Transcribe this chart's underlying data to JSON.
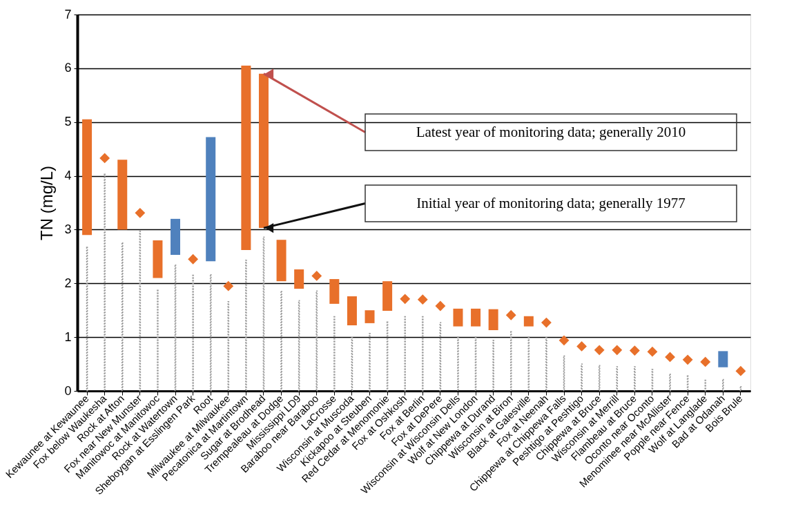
{
  "chart_data": {
    "type": "bar",
    "ylabel": "TN (mg/L)",
    "ylim": [
      0,
      7
    ],
    "yticks": [
      0,
      1,
      2,
      3,
      4,
      5,
      6,
      7
    ],
    "grid": "y",
    "categories": [
      "Kewaunee at Kewaunee",
      "Fox below Waukesha",
      "Rock at Afton",
      "Fox near New Munster",
      "Manitowoc at Manitowoc",
      "Rock at Watertown",
      "Sheboygan at Esslingen Park",
      "Root",
      "Milwaukee at Milwaukee",
      "Pecatonica at Martintown",
      "Sugar at Brodhead",
      "Trempealeau at Dodge",
      "Mississippi LD9",
      "Baraboo near Baraboo",
      "LaCrosse",
      "Wisconsin at Muscoda",
      "Kickapoo at Steuben",
      "Red Cedar at Menomonie",
      "Fox at Oshkosh",
      "Fox at Berlin",
      "Fox at DePere",
      "Wisconsin at Wisconsin Dells",
      "Wolf at New London",
      "Chippewa at Durand",
      "Wisconsin at Biron",
      "Black at Galesville",
      "Fox at Neenah",
      "Chippewa at Chippewa Falls",
      "Peshtigo at Peshtigo",
      "Chippewa at Bruce",
      "Wisconsin at Merrill",
      "Flambeau at Bruce",
      "Oconto near Oconto",
      "Menominee near McAllister",
      "Popple near Fence",
      "Wolf at Langlade",
      "Bad at Odanah",
      "Bois Brule"
    ],
    "series": [
      {
        "type": "bar",
        "line_style": "dotted",
        "color": "#999999",
        "values": [
          2.67,
          4.03,
          2.75,
          2.97,
          1.87,
          2.34,
          2.15,
          2.16,
          1.66,
          2.43,
          2.86,
          1.85,
          1.68,
          1.86,
          1.38,
          0.99,
          1.07,
          1.28,
          1.38,
          1.38,
          1.27,
          1.0,
          1.0,
          0.94,
          1.1,
          1.0,
          0.99,
          0.65,
          0.5,
          0.47,
          0.45,
          0.45,
          0.4,
          0.31,
          0.28,
          0.2,
          0.21,
          0.08
        ]
      },
      {
        "type": "bar",
        "base": [
          2.9,
          null,
          3.0,
          null,
          2.1,
          3.2,
          null,
          4.72,
          null,
          2.62,
          3.03,
          2.04,
          1.9,
          null,
          1.62,
          1.22,
          1.26,
          1.49,
          null,
          null,
          null,
          1.2,
          1.2,
          1.13,
          null,
          1.2,
          null,
          null,
          null,
          null,
          null,
          null,
          null,
          null,
          null,
          null,
          0.74,
          null
        ],
        "values": [
          2.15,
          null,
          1.3,
          null,
          0.7,
          -0.67,
          null,
          -2.31,
          null,
          3.43,
          2.87,
          0.77,
          0.36,
          null,
          0.46,
          0.54,
          0.24,
          0.55,
          null,
          null,
          null,
          0.33,
          0.33,
          0.39,
          null,
          0.19,
          null,
          null,
          null,
          null,
          null,
          null,
          null,
          null,
          null,
          null,
          -0.3,
          null
        ],
        "colors": [
          "#e8702a",
          null,
          "#e8702a",
          null,
          "#e8702a",
          "#4f81bd",
          null,
          "#4f81bd",
          null,
          "#e8702a",
          "#e8702a",
          "#e8702a",
          "#e8702a",
          null,
          "#e8702a",
          "#e8702a",
          "#e8702a",
          "#e8702a",
          null,
          null,
          null,
          "#e8702a",
          "#e8702a",
          "#e8702a",
          null,
          "#e8702a",
          null,
          null,
          null,
          null,
          null,
          null,
          null,
          null,
          null,
          null,
          "#4f81bd",
          null
        ]
      },
      {
        "type": "scatter",
        "marker": "diamond",
        "color": "#e8702a",
        "values": [
          null,
          4.33,
          null,
          3.31,
          null,
          null,
          2.45,
          null,
          1.95,
          null,
          null,
          null,
          null,
          2.14,
          null,
          null,
          null,
          null,
          1.71,
          1.7,
          1.58,
          null,
          null,
          null,
          1.41,
          null,
          1.27,
          0.94,
          0.83,
          0.76,
          0.76,
          0.75,
          0.73,
          0.63,
          0.58,
          0.54,
          null,
          0.37
        ]
      }
    ],
    "annotations": [
      "Latest year of monitoring data; generally 2010",
      "Initial year of monitoring data; generally 1977"
    ]
  }
}
